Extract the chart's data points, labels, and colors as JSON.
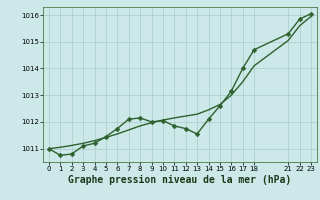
{
  "bg_color": "#cce8e8",
  "grid_color": "#aacccc",
  "line_color": "#2d612d",
  "x_data": [
    0,
    1,
    2,
    3,
    4,
    5,
    6,
    7,
    8,
    9,
    10,
    11,
    12,
    13,
    14,
    15,
    16,
    17,
    18,
    21,
    22,
    23
  ],
  "y_data": [
    1011.0,
    1010.75,
    1010.8,
    1011.1,
    1011.2,
    1011.45,
    1011.75,
    1012.1,
    1012.15,
    1012.0,
    1012.05,
    1011.85,
    1011.75,
    1011.55,
    1012.1,
    1012.6,
    1013.15,
    1014.0,
    1014.7,
    1015.3,
    1015.85,
    1016.05
  ],
  "y_trend": [
    1011.0,
    1011.05,
    1011.12,
    1011.2,
    1011.3,
    1011.42,
    1011.55,
    1011.7,
    1011.85,
    1011.97,
    1012.07,
    1012.15,
    1012.22,
    1012.29,
    1012.45,
    1012.65,
    1013.0,
    1013.5,
    1014.1,
    1015.05,
    1015.6,
    1015.95
  ],
  "xlim": [
    -0.5,
    23.5
  ],
  "ylim": [
    1010.5,
    1016.3
  ],
  "yticks": [
    1011,
    1012,
    1013,
    1014,
    1015,
    1016
  ],
  "xtick_positions": [
    0,
    1,
    2,
    3,
    4,
    5,
    6,
    7,
    8,
    9,
    10,
    11,
    12,
    13,
    14,
    15,
    16,
    17,
    18,
    21,
    22,
    23
  ],
  "xtick_labels": [
    "0",
    "1",
    "2",
    "3",
    "4",
    "5",
    "6",
    "7",
    "8",
    "9",
    "10",
    "11",
    "12",
    "13",
    "14",
    "15",
    "16",
    "17",
    "18",
    "21",
    "22",
    "23"
  ],
  "xlabel": "Graphe pression niveau de la mer (hPa)",
  "xlabel_fontsize": 7,
  "tick_fontsize": 5,
  "line_width": 1.0,
  "marker_size": 2.5
}
